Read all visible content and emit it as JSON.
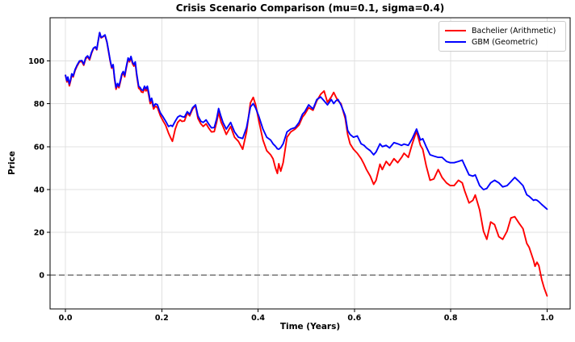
{
  "figure": {
    "title": "Crisis Scenario Comparison (mu=0.1, sigma=0.4)",
    "xlabel": "Time (Years)",
    "ylabel": "Price"
  },
  "legend": {
    "entries": [
      {
        "label": "Bachelier (Arithmetic)",
        "color": "#ff0000"
      },
      {
        "label": "GBM (Geometric)",
        "color": "#0000ff"
      }
    ],
    "position": "upper right"
  },
  "colors": {
    "bachelier_line": "#ff0000",
    "gbm_line": "#0000ff",
    "gridline": "#e0e0e0",
    "zero_line": "#7f7f7f",
    "spine": "#000000",
    "background": "#ffffff",
    "legend_border": "#cccccc"
  },
  "chart_data": {
    "type": "line",
    "title": "Crisis Scenario Comparison (mu=0.1, sigma=0.4)",
    "xlabel": "Time (Years)",
    "ylabel": "Price",
    "grid": true,
    "legend_position": "upper right",
    "xlim": [
      -0.032,
      1.048
    ],
    "ylim": [
      -15.8,
      120.2
    ],
    "xticks": [
      0.0,
      0.2,
      0.4,
      0.6,
      0.8,
      1.0
    ],
    "xtick_labels": [
      "0.0",
      "0.2",
      "0.4",
      "0.6",
      "0.8",
      "1.0"
    ],
    "yticks": [
      0,
      20,
      40,
      60,
      80,
      100
    ],
    "ytick_labels": [
      "0",
      "20",
      "40",
      "60",
      "80",
      "100"
    ],
    "zero_line": {
      "y": 0,
      "style": "dashed",
      "color": "#7f7f7f"
    },
    "x": [
      0.0,
      0.003,
      0.005,
      0.008,
      0.011,
      0.013,
      0.016,
      0.02,
      0.024,
      0.029,
      0.034,
      0.038,
      0.042,
      0.046,
      0.05,
      0.054,
      0.058,
      0.062,
      0.065,
      0.068,
      0.071,
      0.074,
      0.078,
      0.082,
      0.086,
      0.089,
      0.093,
      0.096,
      0.099,
      0.102,
      0.105,
      0.108,
      0.111,
      0.114,
      0.117,
      0.12,
      0.123,
      0.126,
      0.13,
      0.133,
      0.136,
      0.139,
      0.142,
      0.145,
      0.148,
      0.152,
      0.155,
      0.158,
      0.161,
      0.164,
      0.167,
      0.17,
      0.173,
      0.176,
      0.179,
      0.183,
      0.187,
      0.191,
      0.194,
      0.197,
      0.203,
      0.208,
      0.214,
      0.219,
      0.222,
      0.228,
      0.233,
      0.238,
      0.242,
      0.247,
      0.253,
      0.258,
      0.264,
      0.27,
      0.275,
      0.281,
      0.286,
      0.292,
      0.297,
      0.303,
      0.309,
      0.314,
      0.318,
      0.323,
      0.327,
      0.334,
      0.343,
      0.351,
      0.359,
      0.368,
      0.376,
      0.384,
      0.39,
      0.395,
      0.401,
      0.41,
      0.418,
      0.426,
      0.431,
      0.436,
      0.44,
      0.443,
      0.447,
      0.452,
      0.46,
      0.468,
      0.477,
      0.485,
      0.492,
      0.497,
      0.505,
      0.514,
      0.522,
      0.53,
      0.537,
      0.544,
      0.552,
      0.557,
      0.562,
      0.566,
      0.572,
      0.581,
      0.586,
      0.591,
      0.598,
      0.606,
      0.614,
      0.62,
      0.625,
      0.633,
      0.64,
      0.645,
      0.653,
      0.658,
      0.666,
      0.673,
      0.682,
      0.69,
      0.698,
      0.703,
      0.712,
      0.72,
      0.729,
      0.737,
      0.742,
      0.749,
      0.757,
      0.765,
      0.774,
      0.782,
      0.791,
      0.799,
      0.807,
      0.816,
      0.824,
      0.829,
      0.838,
      0.846,
      0.851,
      0.86,
      0.868,
      0.875,
      0.883,
      0.891,
      0.9,
      0.908,
      0.917,
      0.925,
      0.933,
      0.942,
      0.95,
      0.958,
      0.963,
      0.972,
      0.975,
      0.979,
      0.983,
      0.989,
      0.994,
      1.0
    ],
    "series": [
      {
        "name": "Bachelier (Arithmetic)",
        "color": "#ff0000",
        "values": [
          93.3,
          90.2,
          92.0,
          88.4,
          91.0,
          93.6,
          92.5,
          95.6,
          97.6,
          99.6,
          99.8,
          98.0,
          101.0,
          102.0,
          100.5,
          103.5,
          105.8,
          106.4,
          105.2,
          109.3,
          113.2,
          110.8,
          111.3,
          112.0,
          108.7,
          104.8,
          99.8,
          96.6,
          97.8,
          91.3,
          86.8,
          88.8,
          87.5,
          90.3,
          93.2,
          94.4,
          92.6,
          96.4,
          100.8,
          99.6,
          101.6,
          98.8,
          97.6,
          99.0,
          93.1,
          87.3,
          86.7,
          85.5,
          85.3,
          87.2,
          86.0,
          87.2,
          84.0,
          80.1,
          81.5,
          77.6,
          78.9,
          78.2,
          76.3,
          74.4,
          71.9,
          70.0,
          66.3,
          63.8,
          62.5,
          68.2,
          71.3,
          72.5,
          71.8,
          72.0,
          75.7,
          74.4,
          77.6,
          79.2,
          73.2,
          70.7,
          69.4,
          70.7,
          68.8,
          66.9,
          67.0,
          71.5,
          76.0,
          71.5,
          69.5,
          65.7,
          69.4,
          64.4,
          62.5,
          58.8,
          66.9,
          80.5,
          83.0,
          79.5,
          72.6,
          63.1,
          58.1,
          56.2,
          54.3,
          50.0,
          47.5,
          52.0,
          48.5,
          52.5,
          64.4,
          66.9,
          68.2,
          70.1,
          73.8,
          75.1,
          78.2,
          77.0,
          81.4,
          84.5,
          86.0,
          80.7,
          83.2,
          85.3,
          83.0,
          81.4,
          80.1,
          73.2,
          65.7,
          61.3,
          58.8,
          56.9,
          54.4,
          51.8,
          49.3,
          46.2,
          42.4,
          44.3,
          51.8,
          49.3,
          53.1,
          51.2,
          54.4,
          52.5,
          55.0,
          56.9,
          55.0,
          61.2,
          67.2,
          60.6,
          58.7,
          51.2,
          44.3,
          44.9,
          49.3,
          45.6,
          43.1,
          41.8,
          41.8,
          44.3,
          43.1,
          39.3,
          33.7,
          34.9,
          37.4,
          30.5,
          20.5,
          16.7,
          24.8,
          23.6,
          17.9,
          16.7,
          20.5,
          26.7,
          27.3,
          24.2,
          21.7,
          14.8,
          12.9,
          6.8,
          4.1,
          6.0,
          4.5,
          -2.1,
          -6.0,
          -9.7
        ]
      },
      {
        "name": "GBM (Geometric)",
        "color": "#0000ff",
        "values": [
          93.3,
          90.8,
          92.5,
          89.3,
          91.5,
          94.0,
          93.0,
          96.0,
          98.0,
          100.0,
          100.2,
          98.5,
          101.5,
          102.4,
          101.0,
          104.0,
          106.0,
          106.6,
          105.4,
          109.5,
          113.3,
          111.0,
          111.5,
          112.2,
          109.0,
          105.2,
          100.2,
          97.1,
          98.3,
          92.0,
          87.6,
          89.5,
          88.2,
          91.0,
          93.9,
          95.1,
          93.3,
          97.0,
          101.4,
          100.2,
          102.1,
          99.5,
          98.3,
          99.6,
          93.9,
          88.2,
          87.6,
          86.5,
          86.3,
          88.2,
          87.0,
          88.2,
          85.1,
          81.3,
          82.6,
          78.8,
          80.0,
          79.5,
          77.5,
          75.7,
          73.8,
          71.9,
          69.4,
          70.0,
          69.4,
          71.9,
          73.8,
          74.5,
          74.0,
          73.8,
          76.3,
          75.1,
          78.2,
          79.5,
          74.4,
          71.9,
          71.3,
          72.5,
          70.7,
          68.8,
          68.9,
          73.0,
          77.8,
          74.0,
          71.3,
          68.2,
          71.3,
          66.9,
          64.4,
          63.8,
          68.9,
          78.5,
          80.1,
          78.0,
          74.5,
          68.2,
          64.4,
          63.1,
          61.3,
          60.2,
          59.0,
          58.8,
          59.5,
          61.3,
          66.9,
          68.2,
          68.9,
          71.3,
          75.1,
          76.3,
          79.5,
          77.6,
          82.0,
          83.2,
          81.4,
          79.5,
          82.0,
          80.1,
          81.5,
          82.0,
          79.5,
          74.5,
          67.6,
          65.7,
          64.4,
          65.0,
          61.3,
          60.6,
          59.4,
          58.1,
          56.2,
          57.5,
          61.3,
          60.0,
          60.6,
          59.4,
          61.9,
          61.3,
          60.6,
          61.2,
          60.6,
          63.7,
          68.2,
          63.1,
          63.7,
          60.0,
          56.2,
          55.6,
          55.0,
          55.0,
          53.1,
          52.5,
          52.5,
          53.1,
          53.7,
          51.2,
          46.8,
          46.2,
          46.8,
          41.8,
          39.9,
          40.5,
          43.1,
          44.3,
          43.1,
          41.2,
          41.8,
          43.7,
          45.6,
          43.7,
          41.8,
          37.5,
          36.8,
          34.9,
          35.2,
          35.0,
          34.3,
          33.0,
          32.0,
          30.8
        ]
      }
    ]
  }
}
